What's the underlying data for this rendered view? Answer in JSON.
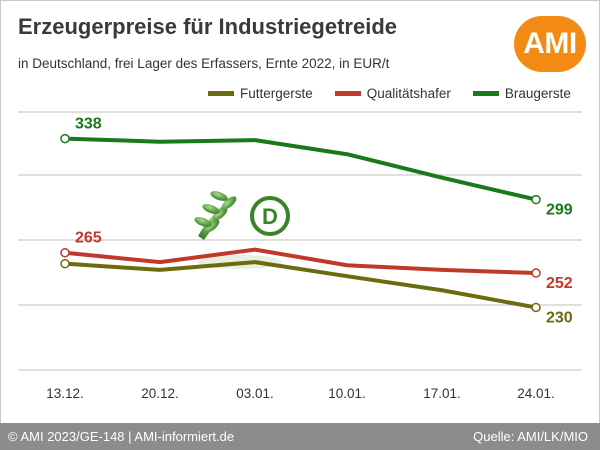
{
  "header": {
    "title": "Erzeugerpreise für Industriegetreide",
    "subtitle": "in Deutschland, frei Lager des Erfassers, Ernte 2022, in EUR/t",
    "logo_text": "AMI"
  },
  "footer": {
    "left": "© AMI 2023/GE-148 | AMI-informiert.de",
    "right": "Quelle: AMI/LK/MIO"
  },
  "colors": {
    "accent": "#f28a14",
    "footer_bg": "#8c8c8c",
    "grid": "#bfbfbf",
    "futtergerste": "#6b6b10",
    "qualitaetshafer": "#c0392b",
    "braugerste": "#1a7a1a"
  },
  "watermark_icon": "d-wheat-emblem-icon",
  "chart_data": {
    "type": "line",
    "categories": [
      "13.12.",
      "20.12.",
      "03.01.",
      "10.01.",
      "17.01.",
      "24.01."
    ],
    "ylim": [
      190,
      355
    ],
    "grid": true,
    "legend_position": "top-right",
    "series": [
      {
        "name": "Futtergerste",
        "color": "#6b6b10",
        "values": [
          258,
          254,
          259,
          250,
          241,
          230
        ],
        "start_label": "",
        "end_label": "230"
      },
      {
        "name": "Qualitätshafer",
        "color": "#c0392b",
        "values": [
          265,
          259,
          267,
          257,
          254,
          252
        ],
        "start_label": "265",
        "end_label": "252"
      },
      {
        "name": "Braugerste",
        "color": "#1a7a1a",
        "values": [
          338,
          336,
          337,
          328,
          313,
          299
        ],
        "start_label": "338",
        "end_label": "299"
      }
    ]
  }
}
